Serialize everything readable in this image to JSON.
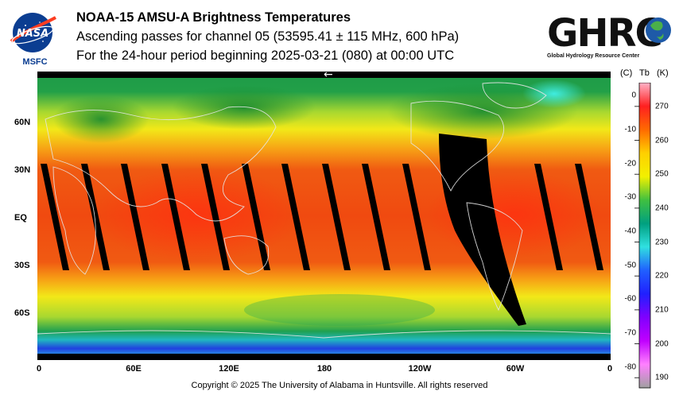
{
  "header": {
    "title": "NOAA-15 AMSU-A Brightness Temperatures",
    "subtitle": "Ascending passes for channel 05 (53595.41 ± 115 MHz, 600 hPa)",
    "period": "For the 24-hour period beginning 2025-03-21 (080) at 00:00 UTC"
  },
  "logos": {
    "nasa": {
      "text": "NASA",
      "caption": "MSFC"
    },
    "ghrc": {
      "text": "GHRC",
      "caption": "Global Hydrology Resource Center"
    }
  },
  "map": {
    "lat_labels": [
      "60N",
      "30N",
      "EQ",
      "30S",
      "60S"
    ],
    "lon_labels": [
      "0",
      "60E",
      "120E",
      "180",
      "120W",
      "60W",
      "0"
    ],
    "direction_arrow": "←",
    "background_colors": {
      "tropics": "#f04a10",
      "midlat": "#f2e818",
      "polar": "#20a040",
      "antarctic": "#1a3ad8",
      "arctic_cyan": "#30e0d0"
    }
  },
  "colorbar": {
    "header_c": "(C)",
    "header_tb": "Tb",
    "header_k": "(K)",
    "celsius_ticks": [
      "0",
      "-10",
      "-20",
      "-30",
      "-40",
      "-50",
      "-60",
      "-70",
      "-80"
    ],
    "kelvin_ticks": [
      "270",
      "260",
      "250",
      "240",
      "230",
      "220",
      "210",
      "200",
      "190"
    ],
    "range_k": [
      187,
      277
    ],
    "stops": [
      "#ffb3c8",
      "#ff2020",
      "#ff6a00",
      "#ffd000",
      "#f2f000",
      "#40c040",
      "#00a080",
      "#30e0e0",
      "#2060ff",
      "#2020ff",
      "#8000ff",
      "#c000ff",
      "#ff80ff",
      "#a0a0a0"
    ]
  },
  "footer": {
    "copyright": "Copyright © 2025 The University of Alabama in Huntsville.  All rights reserved"
  }
}
